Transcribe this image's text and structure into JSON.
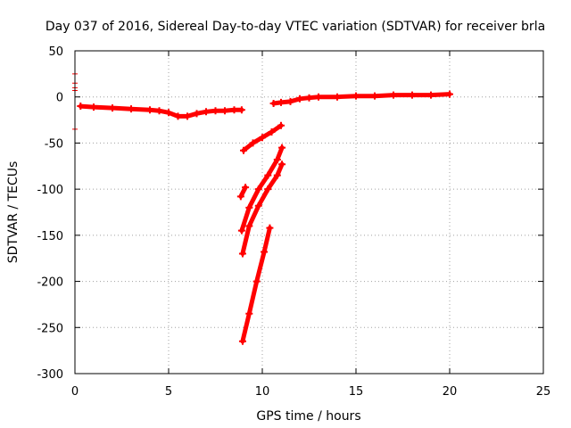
{
  "chart_data": {
    "type": "scatter",
    "title": "Day 037 of 2016, Sidereal Day-to-day VTEC variation (SDTVAR) for receiver brla",
    "xlabel": "GPS time / hours",
    "ylabel": "SDTVAR / TECUs",
    "xlim": [
      0,
      25
    ],
    "ylim": [
      -300,
      50
    ],
    "xticks": [
      0,
      5,
      10,
      15,
      20,
      25
    ],
    "yticks": [
      50,
      0,
      -50,
      -100,
      -150,
      -200,
      -250,
      -300
    ],
    "grid": true,
    "marker_color": "#ff0000",
    "series": [
      {
        "x": [
          0.3,
          1.0,
          2.0,
          3.0,
          4.0,
          4.5,
          5.0,
          5.5,
          6.0,
          6.5,
          7.0,
          7.5,
          8.0,
          8.5,
          8.9
        ],
        "y": [
          -10,
          -11,
          -12,
          -13,
          -14,
          -15,
          -17,
          -21,
          -21,
          -18,
          -16,
          -15,
          -15,
          -14,
          -14
        ]
      },
      {
        "x": [
          10.6,
          11.0,
          11.5,
          12.0,
          12.5,
          13.0,
          14.0,
          15.0,
          16.0,
          17.0,
          18.0,
          19.0,
          20.0
        ],
        "y": [
          -7,
          -6,
          -5,
          -2,
          -1,
          0,
          0,
          1,
          1,
          2,
          2,
          2,
          3
        ]
      },
      {
        "x": [
          9.0,
          9.5,
          10.0,
          10.5,
          11.0
        ],
        "y": [
          -58,
          -50,
          -44,
          -38,
          -31
        ]
      },
      {
        "x": [
          8.9,
          9.3,
          9.8,
          10.3,
          10.8,
          11.05
        ],
        "y": [
          -145,
          -120,
          -100,
          -85,
          -68,
          -55
        ]
      },
      {
        "x": [
          8.95,
          9.3,
          9.8,
          10.3,
          10.8,
          11.05
        ],
        "y": [
          -170,
          -140,
          -118,
          -100,
          -85,
          -73
        ]
      },
      {
        "x": [
          8.85,
          9.1
        ],
        "y": [
          -108,
          -98
        ]
      },
      {
        "x": [
          8.95,
          9.3,
          9.7,
          10.1,
          10.4
        ],
        "y": [
          -265,
          -235,
          -200,
          -168,
          -142
        ]
      },
      {
        "x": [
          0.0,
          0.0,
          0.0,
          0.0,
          0.0
        ],
        "y": [
          25,
          15,
          10,
          7,
          -35
        ]
      }
    ]
  }
}
